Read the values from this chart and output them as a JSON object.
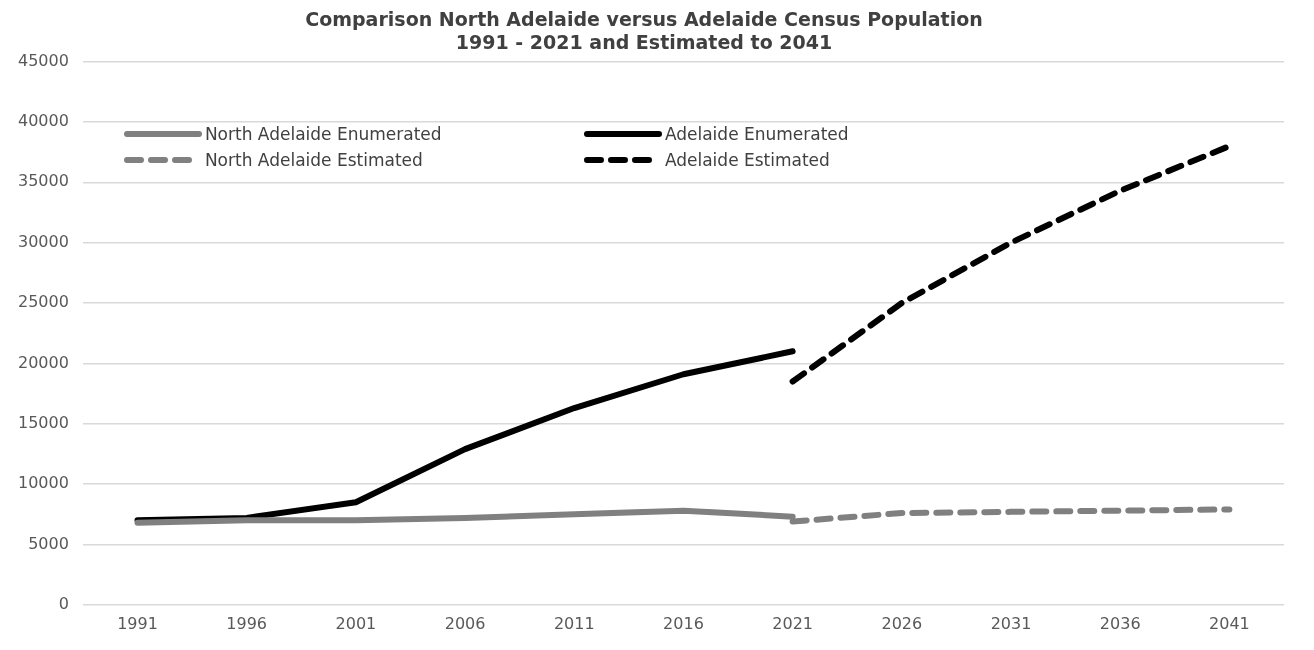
{
  "chart_data": {
    "type": "line",
    "title": "Comparison North Adelaide versus Adelaide Census Population\n1991 - 2021 and Estimated to 2041",
    "categories": [
      "1991",
      "1996",
      "2001",
      "2006",
      "2011",
      "2016",
      "2021",
      "2026",
      "2031",
      "2036",
      "2041"
    ],
    "series": [
      {
        "name": "North Adelaide Enumerated",
        "color": "#808080",
        "line_style": "solid",
        "values": [
          6800,
          7000,
          7000,
          7200,
          7500,
          7800,
          7300,
          null,
          null,
          null,
          null
        ]
      },
      {
        "name": "Adelaide Enumerated",
        "color": "#000000",
        "line_style": "solid",
        "values": [
          7000,
          7200,
          8500,
          12900,
          16300,
          19100,
          21000,
          null,
          null,
          null,
          null
        ]
      },
      {
        "name": "North Adelaide Estimated",
        "color": "#808080",
        "line_style": "dashed",
        "values": [
          null,
          null,
          null,
          null,
          null,
          null,
          6900,
          7600,
          7700,
          7800,
          7900
        ]
      },
      {
        "name": "Adelaide Estimated",
        "color": "#000000",
        "line_style": "dashed",
        "values": [
          null,
          null,
          null,
          null,
          null,
          null,
          18500,
          25000,
          30000,
          34300,
          38000
        ]
      }
    ],
    "ylim": [
      0,
      45000
    ],
    "yticks": [
      0,
      5000,
      10000,
      15000,
      20000,
      25000,
      30000,
      35000,
      40000,
      45000
    ],
    "grid": "y",
    "legend": "top left",
    "marker": "none"
  }
}
